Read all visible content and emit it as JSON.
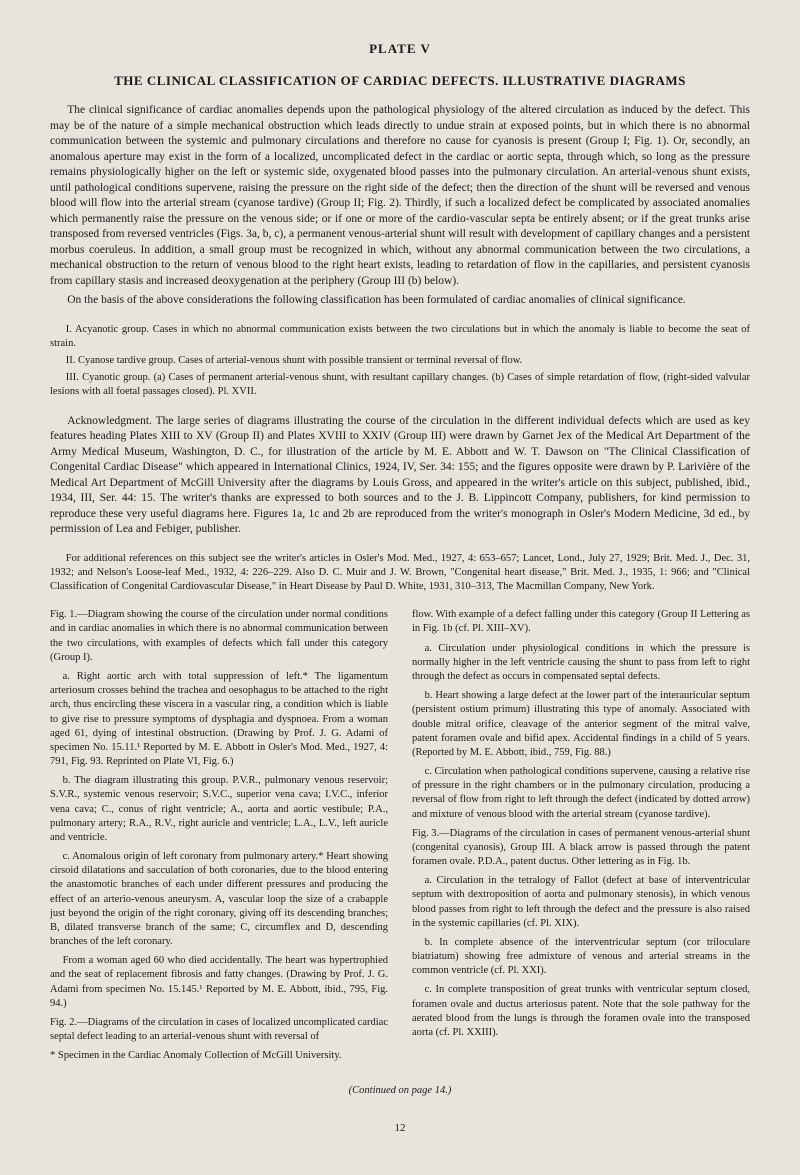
{
  "plate_label": "PLATE V",
  "title": "THE CLINICAL CLASSIFICATION OF CARDIAC DEFECTS.  ILLUSTRATIVE DIAGRAMS",
  "intro": {
    "p1": "The clinical significance of cardiac anomalies depends upon the pathological physiology of the altered circulation as induced by the defect. This may be of the nature of a simple mechanical obstruction which leads directly to undue strain at exposed points, but in which there is no abnormal communication between the systemic and pulmonary circulations and therefore no cause for cyanosis is present (Group I; Fig. 1). Or, secondly, an anomalous aperture may exist in the form of a localized, uncomplicated defect in the cardiac or aortic septa, through which, so long as the pressure remains physiologically higher on the left or systemic side, oxygenated blood passes into the pulmonary circulation. An arterial-venous shunt exists, until pathological conditions supervene, raising the pressure on the right side of the defect; then the direction of the shunt will be reversed and venous blood will flow into the arterial stream (cyanose tardive) (Group II; Fig. 2). Thirdly, if such a localized defect be complicated by associated anomalies which permanently raise the pressure on the venous side; or if one or more of the cardio-vascular septa be entirely absent; or if the great trunks arise transposed from reversed ventricles (Figs. 3a, b, c), a permanent venous-arterial shunt will result with development of capillary changes and a persistent morbus coeruleus. In addition, a small group must be recognized in which, without any abnormal communication between the two circulations, a mechanical obstruction to the return of venous blood to the right heart exists, leading to retardation of flow in the capillaries, and persistent cyanosis from capillary stasis and increased deoxygenation at the periphery (Group III (b) below).",
    "p2": "On the basis of the above considerations the following classification has been formulated of cardiac anomalies of clinical significance."
  },
  "classification": {
    "i": "I. Acyanotic group. Cases in which no abnormal communication exists between the two circulations but in which the anomaly is liable to become the seat of strain.",
    "ii": "II. Cyanose tardive group. Cases of arterial-venous shunt with possible transient or terminal reversal of flow.",
    "iii": "III. Cyanotic group. (a) Cases of permanent arterial-venous shunt, with resultant capillary changes. (b) Cases of simple retardation of flow, (right-sided valvular lesions with all foetal passages closed). Pl. XVII."
  },
  "ack": {
    "p1": "Acknowledgment. The large series of diagrams illustrating the course of the circulation in the different individual defects which are used as key features heading Plates XIII to XV (Group II) and Plates XVIII to XXIV (Group III) were drawn by Garnet Jex of the Medical Art Department of the Army Medical Museum, Washington, D. C., for illustration of the article by M. E. Abbott and W. T. Dawson on \"The Clinical Classification of Congenital Cardiac Disease\" which appeared in International Clinics, 1924, IV, Ser. 34: 155; and the figures opposite were drawn by P. Larivière of the Medical Art Department of McGill University after the diagrams by Louis Gross, and appeared in the writer's article on this subject, published, ibid., 1934, III, Ser. 44: 15. The writer's thanks are expressed to both sources and to the J. B. Lippincott Company, publishers, for kind permission to reproduce these very useful diagrams here. Figures 1a, 1c and 2b are reproduced from the writer's monograph in Osler's Modern Medicine, 3d ed., by permission of Lea and Febiger, publisher.",
    "p2": "For additional references on this subject see the writer's articles in Osler's Mod. Med., 1927, 4: 653–657; Lancet, Lond., July 27, 1929; Brit. Med. J., Dec. 31, 1932; and Nelson's Loose-leaf Med., 1932, 4: 226–229. Also D. C. Muir and J. W. Brown, \"Congenital heart disease,\" Brit. Med. J., 1935, 1: 966; and \"Clinical Classification of Congenital Cardiovascular Disease,\" in Heart Disease by Paul D. White, 1931, 310–313, The Macmillan Company, New York."
  },
  "left_col": {
    "fig1_head": "Fig. 1.—Diagram showing the course of the circulation under normal conditions and in cardiac anomalies in which there is no abnormal communication between the two circulations, with examples of defects which fall under this category (Group I).",
    "fig1_a": "a. Right aortic arch with total suppression of left.* The ligamentum arteriosum crosses behind the trachea and oesophagus to be attached to the right arch, thus encircling these viscera in a vascular ring, a condition which is liable to give rise to pressure symptoms of dysphagia and dyspnoea. From a woman aged 61, dying of intestinal obstruction. (Drawing by Prof. J. G. Adami of specimen No. 15.11.¹ Reported by M. E. Abbott in Osler's Mod. Med., 1927, 4: 791, Fig. 93. Reprinted on Plate VI, Fig. 6.)",
    "fig1_b": "b. The diagram illustrating this group. P.V.R., pulmonary venous reservoir; S.V.R., systemic venous reservoir; S.V.C., superior vena cava; I.V.C., inferior vena cava; C., conus of right ventricle; A., aorta and aortic vestibule; P.A., pulmonary artery; R.A., R.V., right auricle and ventricle; L.A., L.V., left auricle and ventricle.",
    "fig1_c": "c. Anomalous origin of left coronary from pulmonary artery.* Heart showing cirsoid dilatations and sacculation of both coronaries, due to the blood entering the anastomotic branches of each under different pressures and producing the effect of an arterio-venous aneurysm. A, vascular loop the size of a crabapple just beyond the origin of the right coronary, giving off its descending branches; B, dilated transverse branch of the same; C, circumflex and D, descending branches of the left coronary.",
    "fig1_c2": "From a woman aged 60 who died accidentally. The heart was hypertrophied and the seat of replacement fibrosis and fatty changes. (Drawing by Prof. J. G. Adami from specimen No. 15.145.¹ Reported by M. E. Abbott, ibid., 795, Fig. 94.)",
    "fig2": "Fig. 2.—Diagrams of the circulation in cases of localized uncomplicated cardiac septal defect leading to an arterial-venous shunt with reversal of",
    "footnote": "* Specimen in the Cardiac Anomaly Collection of McGill University."
  },
  "right_col": {
    "p1": "flow. With example of a defect falling under this category (Group II Lettering as in Fig. 1b (cf. Pl. XIII–XV).",
    "p2": "a. Circulation under physiological conditions in which the pressure is normally higher in the left ventricle causing the shunt to pass from left to right through the defect as occurs in compensated septal defects.",
    "p3": "b. Heart showing a large defect at the lower part of the interauricular septum (persistent ostium primum) illustrating this type of anomaly. Associated with double mitral orifice, cleavage of the anterior segment of the mitral valve, patent foramen ovale and bifid apex. Accidental findings in a child of 5 years. (Reported by M. E. Abbott, ibid., 759, Fig. 88.)",
    "p4": "c. Circulation when pathological conditions supervene, causing a relative rise of pressure in the right chambers or in the pulmonary circulation, producing a reversal of flow from right to left through the defect (indicated by dotted arrow) and mixture of venous blood with the arterial stream (cyanose tardive).",
    "fig3_head": "Fig. 3.—Diagrams of the circulation in cases of permanent venous-arterial shunt (congenital cyanosis), Group III. A black arrow is passed through the patent foramen ovale. P.D.A., patent ductus. Other lettering as in Fig. 1b.",
    "fig3_a": "a. Circulation in the tetralogy of Fallot (defect at base of interventricular septum with dextroposition of aorta and pulmonary stenosis), in which venous blood passes from right to left through the defect and the pressure is also raised in the systemic capillaries (cf. Pl. XIX).",
    "fig3_b": "b. In complete absence of the interventricular septum (cor triloculare biatriatum) showing free admixture of venous and arterial streams in the common ventricle (cf. Pl. XXI).",
    "fig3_c": "c. In complete transposition of great trunks with ventricular septum closed, foramen ovale and ductus arteriosus patent. Note that the sole pathway for the aerated blood from the lungs is through the foramen ovale into the transposed aorta (cf. Pl. XXIII)."
  },
  "continued": "(Continued on page 14.)",
  "page_num": "12"
}
